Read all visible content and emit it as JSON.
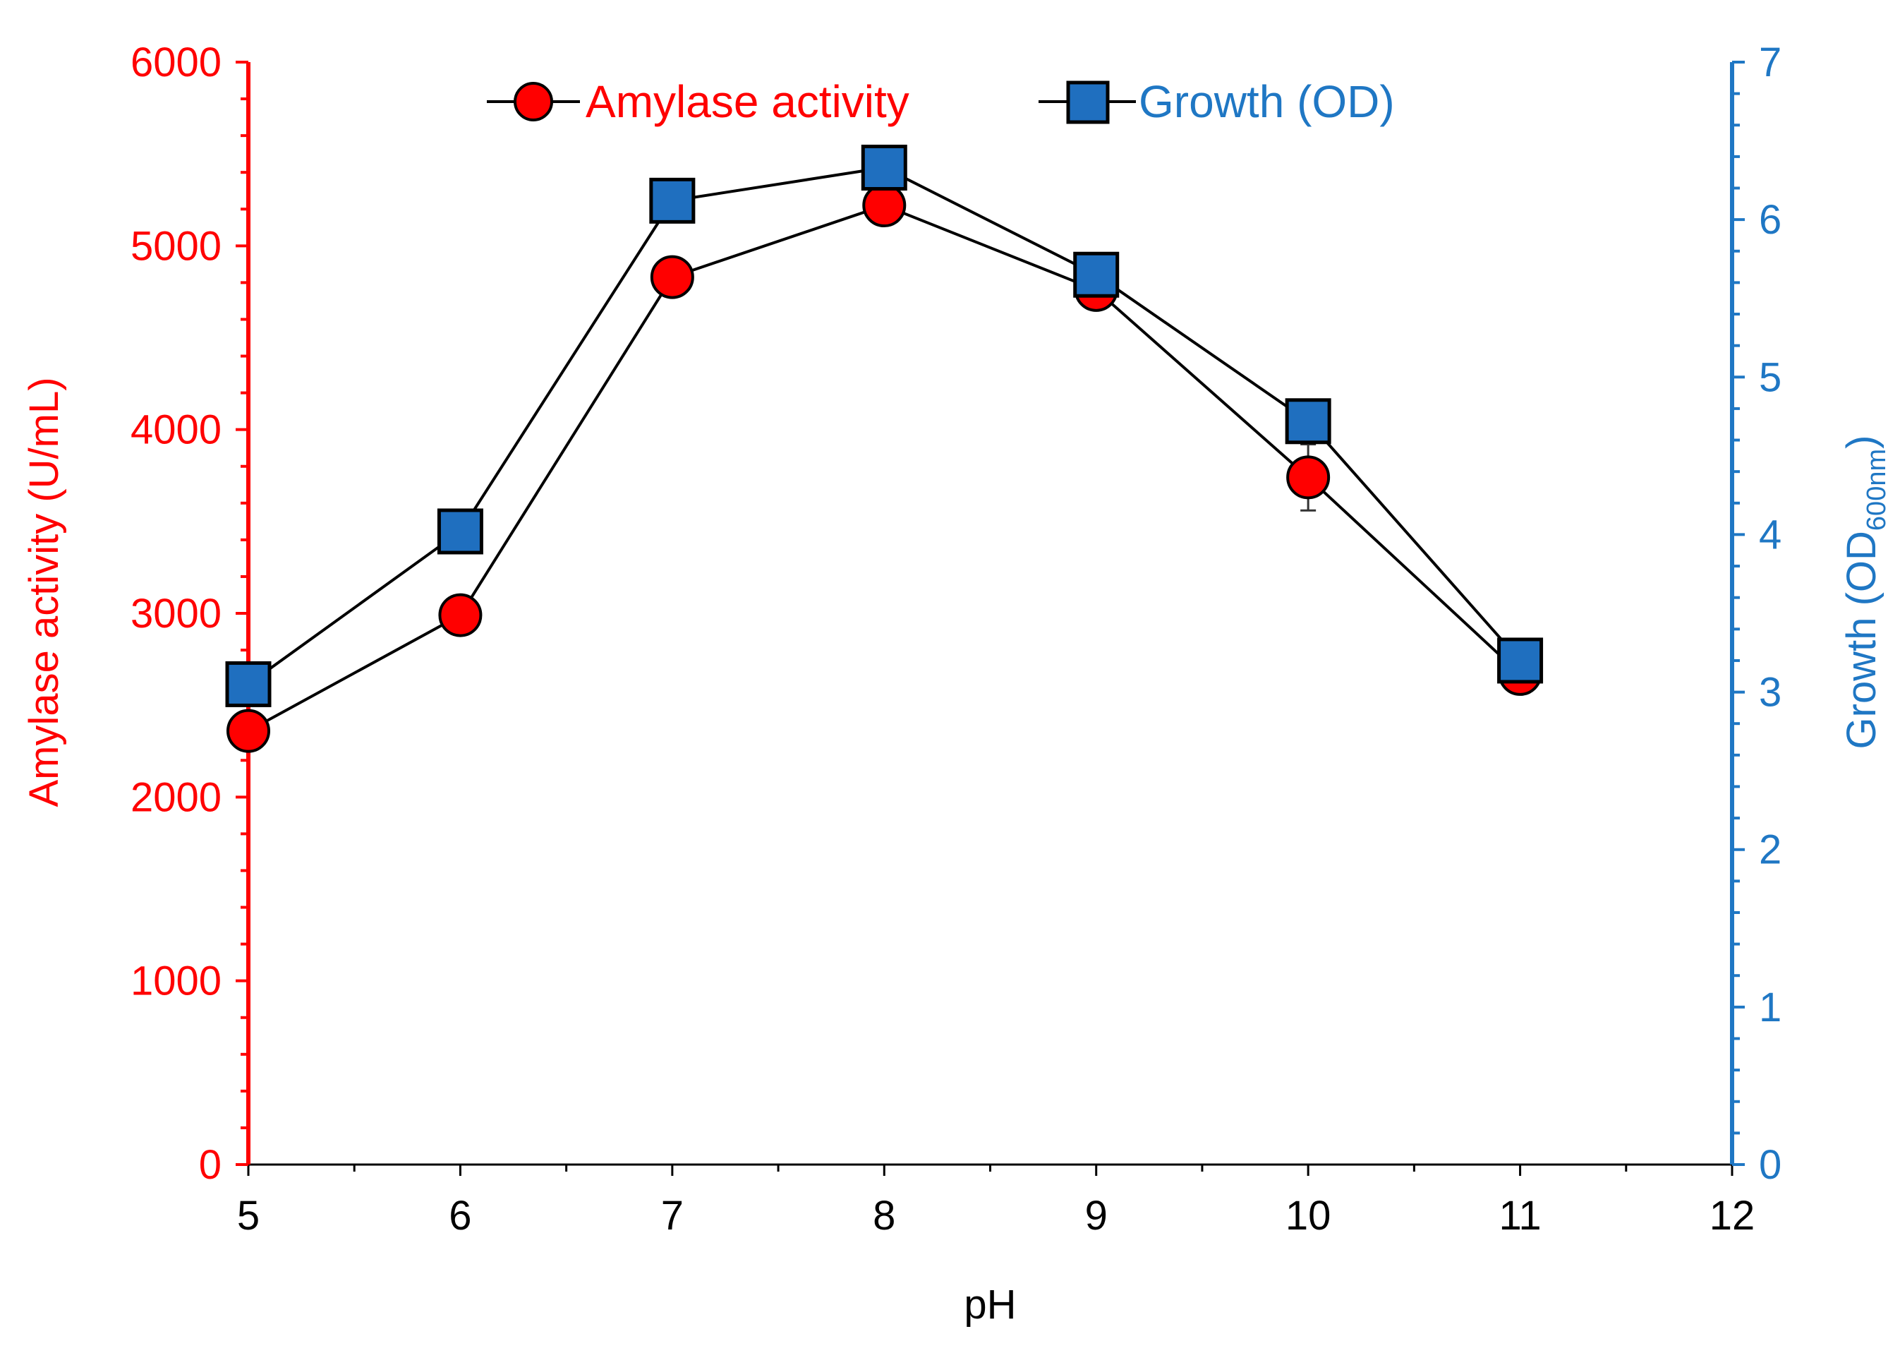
{
  "chart_data": {
    "type": "line",
    "title": "",
    "x": [
      5,
      6,
      7,
      8,
      9,
      10,
      11
    ],
    "xlabel": "pH",
    "xlim": [
      5,
      12
    ],
    "xticks": [
      5,
      6,
      7,
      8,
      9,
      10,
      11,
      12
    ],
    "y_left": {
      "label": "Amylase activity (U/mL)",
      "lim": [
        0,
        6000
      ],
      "ticks": [
        0,
        1000,
        2000,
        3000,
        4000,
        5000,
        6000
      ],
      "color": "#ff0000"
    },
    "y_right": {
      "label_main": "Growth (OD",
      "label_sub": "600nm",
      "label_end": ")",
      "lim": [
        0,
        7
      ],
      "ticks": [
        0,
        1,
        2,
        3,
        4,
        5,
        6,
        7
      ],
      "color": "#1f77c4"
    },
    "series": [
      {
        "name": "Amylase activity",
        "axis": "left",
        "marker": "circle",
        "color": "#ff0000",
        "values": [
          2360,
          2990,
          4830,
          5220,
          4760,
          3740,
          2670
        ],
        "errors": [
          60,
          60,
          60,
          60,
          90,
          180,
          70
        ]
      },
      {
        "name": "Growth (OD)",
        "axis": "right",
        "marker": "square",
        "color": "#1f6fbf",
        "values": [
          3.05,
          4.02,
          6.12,
          6.33,
          5.65,
          4.72,
          3.2
        ],
        "errors": [
          0.1,
          0.08,
          0.1,
          0.1,
          0.1,
          0.1,
          0.12
        ]
      }
    ],
    "legend": {
      "placement": "top-center"
    }
  }
}
